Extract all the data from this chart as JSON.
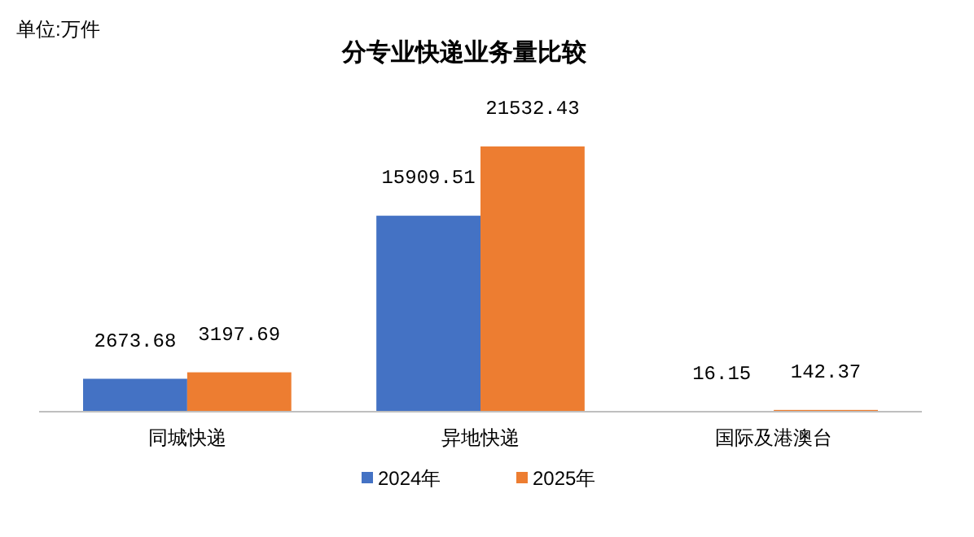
{
  "chart_data": {
    "type": "bar",
    "title": "分专业快递业务量比较",
    "annotations": [
      "单位:万件"
    ],
    "categories": [
      "同城快递",
      "异地快递",
      "国际及港澳台"
    ],
    "series": [
      {
        "name": "2024年",
        "color": "#4472c4",
        "values": [
          2673.68,
          15909.51,
          16.15
        ]
      },
      {
        "name": "2025年",
        "color": "#ed7d31",
        "values": [
          3197.69,
          21532.43,
          142.37
        ]
      }
    ],
    "data_labels": true,
    "legend": "bottom"
  }
}
